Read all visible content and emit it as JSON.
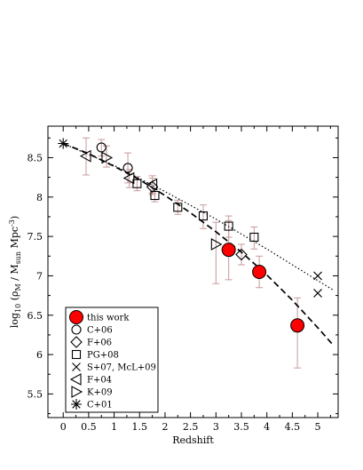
{
  "chart_data": {
    "type": "scatter",
    "xlabel": "Redshift",
    "ylabel": {
      "main": "log",
      "main_sub": "10",
      "paren_open": " (ρ",
      "rho_sub": "M",
      "slash": "  /  M",
      "msun_sub": "sun",
      "unit": " Mpc",
      "unit_sup": "-3",
      "paren_close": ")"
    },
    "xlim": [
      -0.3,
      5.4
    ],
    "ylim": [
      5.2,
      8.9
    ],
    "x_ticks": [
      0,
      0.5,
      1,
      1.5,
      2,
      2.5,
      3,
      3.5,
      4,
      4.5,
      5
    ],
    "x_tick_labels": [
      "0",
      "0.5",
      "1",
      "1.5",
      "2",
      "2.5",
      "3",
      "3.5",
      "4",
      "4.5",
      "5"
    ],
    "y_ticks": [
      5.5,
      6,
      6.5,
      7,
      7.5,
      8,
      8.5
    ],
    "y_tick_labels": [
      "5.5",
      "6",
      "6.5",
      "7",
      "7.5",
      "8",
      "8.5"
    ],
    "grid": false,
    "legend_position": "bottom-left",
    "error_bar_color": "#c79a9a",
    "curves": [
      {
        "style": "dashed",
        "x": [
          0,
          0.5,
          1,
          1.5,
          2,
          2.5,
          3,
          3.5,
          4,
          4.5,
          5,
          5.3
        ],
        "y": [
          8.68,
          8.55,
          8.39,
          8.22,
          8.02,
          7.8,
          7.56,
          7.3,
          7.01,
          6.69,
          6.34,
          6.12
        ]
      },
      {
        "style": "dotted",
        "x": [
          0,
          1,
          2,
          3,
          4,
          5,
          5.3
        ],
        "y": [
          8.68,
          8.4,
          8.07,
          7.72,
          7.34,
          6.94,
          6.82
        ]
      }
    ],
    "series": [
      {
        "name": "this work",
        "marker": "filled-circle",
        "color": "#ff0000",
        "points": [
          {
            "x": 3.25,
            "y": 7.33,
            "ylo": 6.95,
            "yhi": 7.7
          },
          {
            "x": 3.85,
            "y": 7.05,
            "ylo": 6.85,
            "yhi": 7.25
          },
          {
            "x": 4.6,
            "y": 6.37,
            "ylo": 5.83,
            "yhi": 6.72
          }
        ]
      },
      {
        "name": "C+06",
        "marker": "open-circle",
        "points": [
          {
            "x": 0.75,
            "y": 8.63,
            "ylo": 8.52,
            "yhi": 8.73
          },
          {
            "x": 1.27,
            "y": 8.37,
            "ylo": 8.18,
            "yhi": 8.56
          }
        ]
      },
      {
        "name": "F+06",
        "marker": "open-diamond",
        "points": [
          {
            "x": 1.75,
            "y": 8.13,
            "ylo": 8.03,
            "yhi": 8.24
          },
          {
            "x": 3.5,
            "y": 7.27,
            "ylo": 7.14,
            "yhi": 7.4
          }
        ]
      },
      {
        "name": "PG+08",
        "marker": "open-square",
        "points": [
          {
            "x": 1.45,
            "y": 8.17,
            "ylo": 8.08,
            "yhi": 8.26
          },
          {
            "x": 1.8,
            "y": 8.02,
            "ylo": 7.94,
            "yhi": 8.1
          },
          {
            "x": 2.25,
            "y": 7.87,
            "ylo": 7.78,
            "yhi": 7.96
          },
          {
            "x": 2.75,
            "y": 7.76,
            "ylo": 7.6,
            "yhi": 7.9
          },
          {
            "x": 3.25,
            "y": 7.63,
            "ylo": 7.49,
            "yhi": 7.76
          },
          {
            "x": 3.75,
            "y": 7.49,
            "ylo": 7.34,
            "yhi": 7.62
          }
        ]
      },
      {
        "name": "S+07, McL+09",
        "marker": "x",
        "points": [
          {
            "x": 5.0,
            "y": 7.0
          },
          {
            "x": 5.0,
            "y": 6.78
          }
        ]
      },
      {
        "name": "F+04",
        "marker": "left-triangle",
        "points": [
          {
            "x": 0.45,
            "y": 8.52,
            "ylo": 8.28,
            "yhi": 8.75
          },
          {
            "x": 1.3,
            "y": 8.24,
            "ylo": 8.12,
            "yhi": 8.35
          },
          {
            "x": 1.75,
            "y": 8.16,
            "ylo": 8.05,
            "yhi": 8.27
          }
        ]
      },
      {
        "name": "K+09",
        "marker": "right-triangle",
        "points": [
          {
            "x": 0.85,
            "y": 8.5,
            "ylo": 8.38,
            "yhi": 8.65
          },
          {
            "x": 3.0,
            "y": 7.4,
            "ylo": 6.9,
            "yhi": 7.68
          }
        ]
      },
      {
        "name": "C+01",
        "marker": "asterisk",
        "points": [
          {
            "x": 0.0,
            "y": 8.68
          }
        ]
      }
    ]
  }
}
